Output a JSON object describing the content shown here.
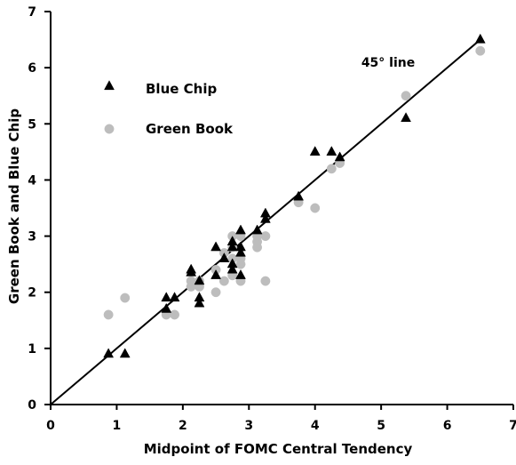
{
  "chart_data": {
    "type": "scatter",
    "title": "",
    "xlabel": "Midpoint of FOMC Central Tendency",
    "ylabel": "Green Book and Blue Chip",
    "xlim": [
      0,
      7
    ],
    "ylim": [
      0,
      7
    ],
    "x_ticks": [
      "0",
      "1",
      "2",
      "3",
      "4",
      "5",
      "6",
      "7"
    ],
    "y_ticks": [
      "0",
      "1",
      "2",
      "3",
      "4",
      "5",
      "6",
      "7"
    ],
    "grid": false,
    "legend_position": "upper-left",
    "annotation": {
      "text": "45° line",
      "x": 4.7,
      "y": 6.1
    },
    "reference_line": {
      "name": "45° line",
      "x": [
        0,
        6.5
      ],
      "y": [
        0,
        6.5
      ]
    },
    "series": [
      {
        "name": "Blue Chip",
        "marker": "triangle",
        "color": "#000000",
        "points": [
          [
            0.875,
            0.9
          ],
          [
            1.125,
            0.9
          ],
          [
            1.75,
            1.7
          ],
          [
            1.75,
            1.9
          ],
          [
            1.875,
            1.9
          ],
          [
            2.125,
            2.35
          ],
          [
            2.125,
            2.4
          ],
          [
            2.25,
            1.8
          ],
          [
            2.25,
            1.9
          ],
          [
            2.25,
            2.2
          ],
          [
            2.5,
            2.3
          ],
          [
            2.5,
            2.8
          ],
          [
            2.625,
            2.6
          ],
          [
            2.75,
            2.4
          ],
          [
            2.75,
            2.5
          ],
          [
            2.75,
            2.8
          ],
          [
            2.75,
            2.9
          ],
          [
            2.875,
            2.3
          ],
          [
            2.875,
            2.7
          ],
          [
            2.875,
            2.8
          ],
          [
            2.875,
            3.1
          ],
          [
            3.125,
            3.1
          ],
          [
            3.25,
            3.3
          ],
          [
            3.25,
            3.4
          ],
          [
            3.75,
            3.7
          ],
          [
            4.0,
            4.5
          ],
          [
            4.25,
            4.5
          ],
          [
            4.375,
            4.4
          ],
          [
            5.375,
            5.1
          ],
          [
            6.5,
            6.5
          ]
        ]
      },
      {
        "name": "Green Book",
        "marker": "circle",
        "color": "#bdbdbd",
        "points": [
          [
            0.875,
            1.6
          ],
          [
            1.125,
            1.9
          ],
          [
            1.75,
            1.6
          ],
          [
            1.875,
            1.6
          ],
          [
            2.125,
            2.1
          ],
          [
            2.125,
            2.2
          ],
          [
            2.25,
            2.1
          ],
          [
            2.25,
            2.2
          ],
          [
            2.5,
            2.0
          ],
          [
            2.5,
            2.4
          ],
          [
            2.625,
            2.2
          ],
          [
            2.625,
            2.7
          ],
          [
            2.75,
            2.3
          ],
          [
            2.75,
            2.6
          ],
          [
            2.75,
            2.8
          ],
          [
            2.75,
            3.0
          ],
          [
            2.875,
            2.2
          ],
          [
            2.875,
            2.5
          ],
          [
            2.875,
            2.6
          ],
          [
            2.875,
            3.0
          ],
          [
            3.125,
            2.8
          ],
          [
            3.125,
            2.9
          ],
          [
            3.125,
            3.0
          ],
          [
            3.25,
            2.2
          ],
          [
            3.25,
            3.0
          ],
          [
            3.75,
            3.6
          ],
          [
            4.0,
            3.5
          ],
          [
            4.25,
            4.2
          ],
          [
            4.375,
            4.3
          ],
          [
            5.375,
            5.5
          ],
          [
            6.5,
            6.3
          ]
        ]
      }
    ]
  }
}
